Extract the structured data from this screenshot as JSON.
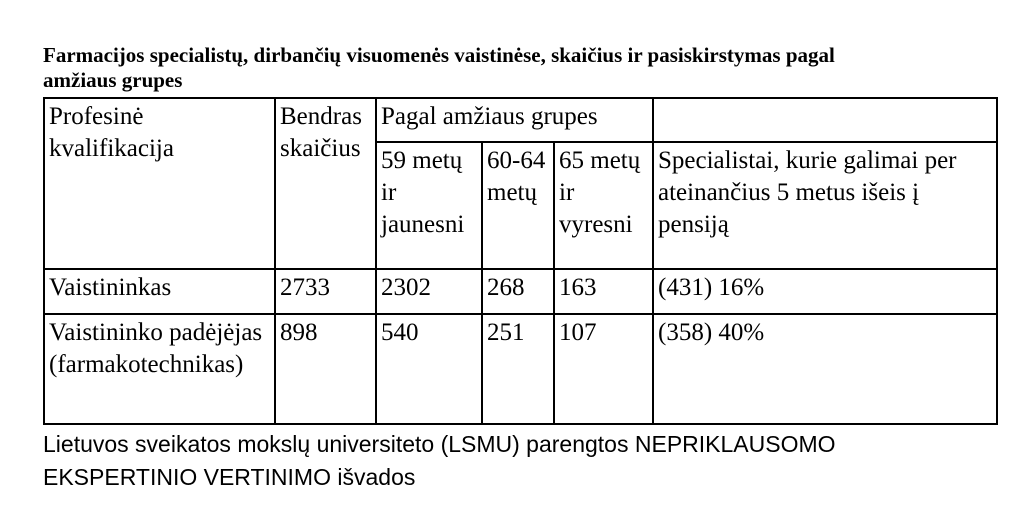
{
  "title": {
    "line1": "Farmacijos specialistų, dirbančių visuomenės vaistinėse, skaičius ir pasiskirstymas pagal",
    "line2": "amžiaus grupes"
  },
  "table": {
    "header": {
      "qualification": "Profesinė kvalifikacija",
      "total": "Bendras skaičius",
      "by_age": "Pagal amžiaus grupes",
      "age_59_under": "59 metų ir jaunesni",
      "age_60_64": "60-64 metų",
      "age_65_over": "65 metų ir vyresni",
      "retire_5y": "Specialistai, kurie galimai per ateinančius 5 metus išeis į pensiją"
    },
    "rows": [
      {
        "qualification": "Vaistininkas",
        "total": "2733",
        "age_59_under": "2302",
        "age_60_64": "268",
        "age_65_over": "163",
        "retire_5y": "(431) 16%"
      },
      {
        "qualification": "Vaistininko padėjėjas (farmakotechnikas)",
        "total": "898",
        "age_59_under": "540",
        "age_60_64": "251",
        "age_65_over": "107",
        "retire_5y": "(358) 40%"
      }
    ]
  },
  "footer": {
    "line1": "Lietuvos sveikatos mokslų universiteto (LSMU) parengtos NEPRIKLAUSOMO",
    "line2": "EKSPERTINIO VERTINIMO išvados"
  }
}
